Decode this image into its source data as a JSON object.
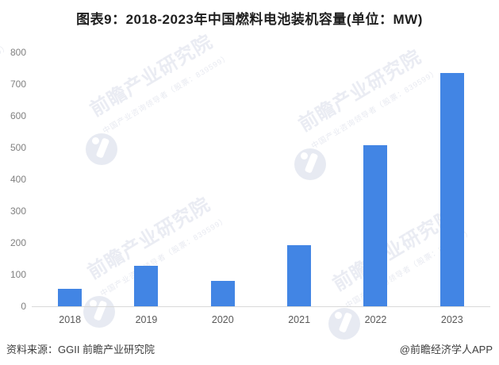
{
  "title": "图表9：2018-2023年中国燃料电池装机容量(单位：MW)",
  "chart_data": {
    "type": "bar",
    "title": "图表9：2018-2023年中国燃料电池装机容量(单位：MW)",
    "unit": "MW",
    "categories": [
      "2018",
      "2019",
      "2020",
      "2021",
      "2022",
      "2023"
    ],
    "values": [
      55,
      128,
      80,
      192,
      507,
      735
    ],
    "xlabel": "",
    "ylabel": "",
    "ylim": [
      0,
      800
    ],
    "yticks": [
      0,
      100,
      200,
      300,
      400,
      500,
      600,
      700,
      800
    ],
    "grid": false,
    "legend": "none",
    "bar_color": "#4285e4"
  },
  "watermark": {
    "big": "前瞻产业研究院",
    "small": "中国产业咨询领导者（股票：839599）"
  },
  "footer": {
    "source": "资料来源：GGII 前瞻产业研究院",
    "credit": "@前瞻经济学人APP"
  },
  "colors": {
    "bar": "#4285e4",
    "axis_line": "#d9d9d9",
    "y_tick_label": "#808080",
    "x_tick_label": "#595959",
    "title": "#1f1f1f",
    "footer": "#3d3d3d",
    "watermark": "#eaecf3"
  }
}
